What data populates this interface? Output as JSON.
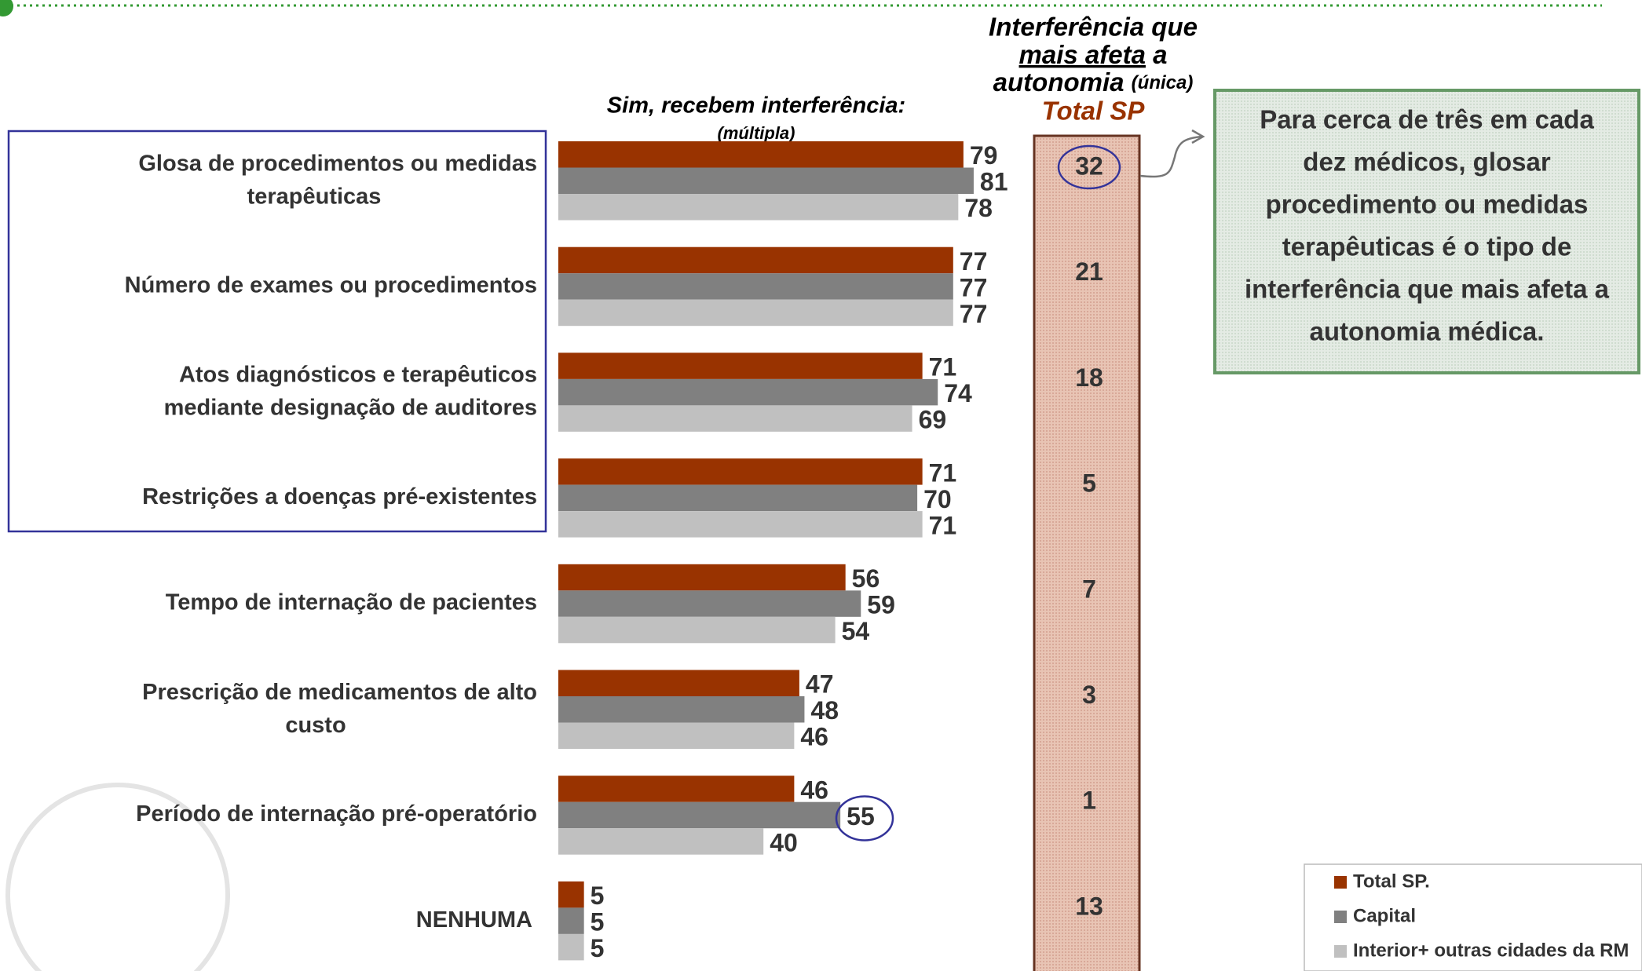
{
  "chart_data": {
    "type": "bar",
    "orientation": "horizontal",
    "subtitle": "Sim, recebem interferência:",
    "subtitle_note": "(múltipla)",
    "categories": [
      "Glosa de procedimentos ou medidas terapêuticas",
      "Número de exames ou procedimentos",
      "Atos diagnósticos e terapêuticos mediante designação de auditores",
      "Restrições a doenças pré-existentes",
      "Tempo de internação de pacientes",
      "Prescrição de medicamentos de alto custo",
      "Período de internação pré-operatório",
      "NENHUMA"
    ],
    "series": [
      {
        "name": "Total SP.",
        "color": "#993300",
        "values": [
          79,
          77,
          71,
          71,
          56,
          47,
          46,
          5
        ]
      },
      {
        "name": "Capital",
        "color": "#808080",
        "values": [
          81,
          77,
          74,
          70,
          59,
          48,
          55,
          5
        ]
      },
      {
        "name": "Interior+ outras cidades da RM",
        "color": "#c0c0c0",
        "values": [
          78,
          77,
          69,
          71,
          54,
          46,
          40,
          5
        ]
      }
    ],
    "single": {
      "title_1": "Interferência que",
      "title_2": "mais afeta",
      "title_3": "a",
      "title_4": "autonomia",
      "title_5": "(única)",
      "title_6": "Total SP",
      "values": [
        32,
        21,
        18,
        5,
        7,
        3,
        1,
        13
      ]
    },
    "callout": [
      "Para cerca de três em cada",
      "dez médicos, glosar",
      "procedimento ou medidas",
      "terapêuticas é o tipo de",
      "interferência que mais afeta a",
      "autonomia médica."
    ]
  }
}
